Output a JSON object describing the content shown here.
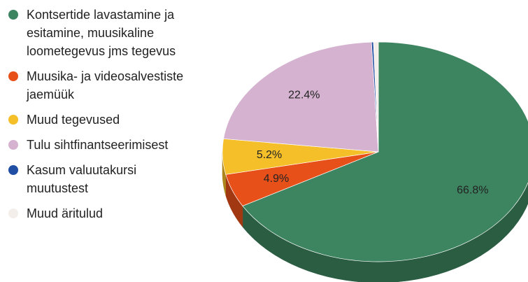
{
  "chart_data": {
    "type": "pie",
    "categories": [
      "Kontsertide lavastamine ja esitamine, muusikaline loometegevus jms tegevus",
      "Muusika- ja videosalvestiste jaemüük",
      "Muud tegevused",
      "Tulu sihtfinantseerimisest",
      "Kasum valuutakursi muutustest",
      "Muud äritulud"
    ],
    "values": [
      66.8,
      4.9,
      5.2,
      22.4,
      0.2,
      0.5
    ],
    "value_labels": [
      "66.8%",
      "4.9%",
      "5.2%",
      "22.4%",
      null,
      null
    ],
    "colors": [
      "#3d8560",
      "#e8501a",
      "#f5bf2a",
      "#d5b3d0",
      "#1f4ea3",
      "#f3eeea"
    ],
    "legend": "left"
  }
}
